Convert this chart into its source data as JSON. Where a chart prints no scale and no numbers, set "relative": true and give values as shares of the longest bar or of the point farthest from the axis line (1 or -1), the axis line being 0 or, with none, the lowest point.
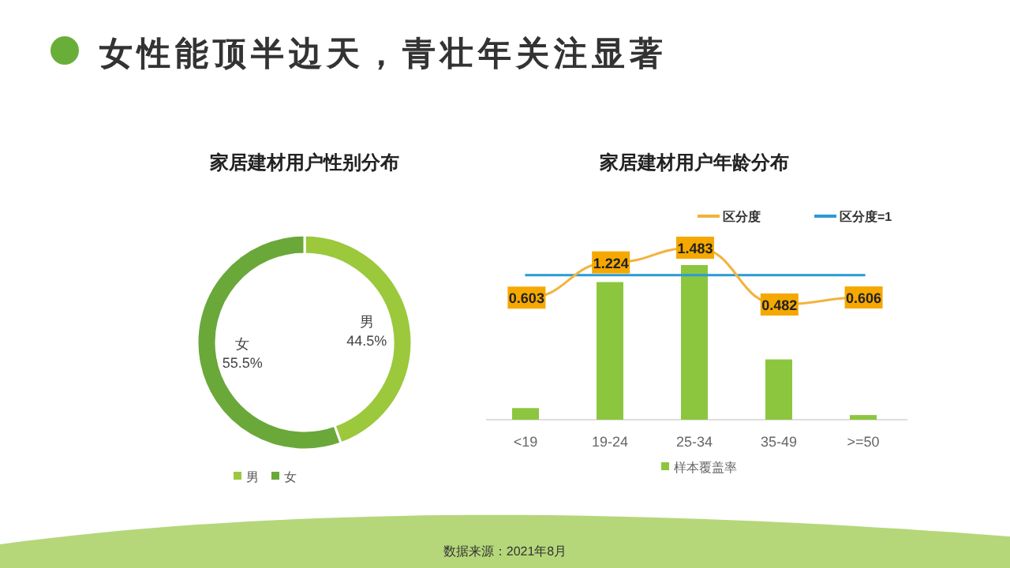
{
  "chart_data": [
    {
      "type": "other",
      "title": "女性能顶半边天，青壮年关注显著",
      "annotations": [
        "数据来源：2021年8月"
      ]
    },
    {
      "type": "donut",
      "title": "家居建材用户性别分布",
      "categories": [
        "男",
        "女"
      ],
      "values": [
        44.5,
        55.5
      ],
      "value_labels": [
        "44.5%",
        "55.5%"
      ],
      "colors": [
        "#9cc83c",
        "#6aa83a"
      ],
      "legend": "bottom"
    },
    {
      "type": "bar",
      "title": "家居建材用户年龄分布",
      "categories": [
        "<19",
        "19-24",
        "25-34",
        "35-49",
        ">=50"
      ],
      "relative": true,
      "legend": "bottom",
      "series": [
        {
          "name": "样本覆盖率",
          "color": "#8cc63f",
          "values": [
            0.075,
            0.89,
            1,
            0.39,
            0.03
          ]
        }
      ]
    },
    {
      "type": "line",
      "categories": [
        null,
        null,
        null,
        null,
        null
      ],
      "legend": "top",
      "marker": "square",
      "series": [
        {
          "name": "区分度",
          "color": "#f2b33d",
          "values": [
            0.603,
            1.224,
            1.483,
            0.482,
            0.606
          ],
          "value_labels": [
            "0.603",
            "1.224",
            "1.483",
            "0.482",
            "0.606"
          ]
        }
      ],
      "ref_lines": [
        {
          "axis": "y",
          "value": 1,
          "label": "区分度=1",
          "color": "#2a9ad6"
        }
      ]
    }
  ]
}
